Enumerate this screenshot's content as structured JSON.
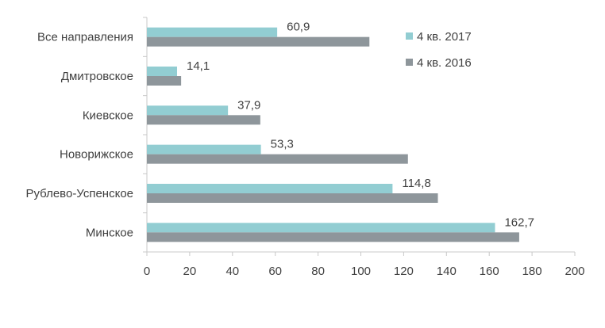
{
  "chart_data": {
    "type": "bar",
    "orientation": "horizontal",
    "categories": [
      "Все направления",
      "Дмитровское",
      "Киевское",
      "Новорижское",
      "Рублево-Успенское",
      "Минское"
    ],
    "series": [
      {
        "name": "4 кв. 2017",
        "color": "#92CDD2",
        "values": [
          60.9,
          14.1,
          37.9,
          53.3,
          114.8,
          162.7
        ],
        "data_labels": [
          "60,9",
          "14,1",
          "37,9",
          "53,3",
          "114,8",
          "162,7"
        ]
      },
      {
        "name": "4 кв. 2016",
        "color": "#8E969B",
        "values": [
          104,
          16,
          53,
          122,
          136,
          174
        ]
      }
    ],
    "xlim": [
      0,
      200
    ],
    "x_ticks": [
      0,
      20,
      40,
      60,
      80,
      100,
      120,
      140,
      160,
      180,
      200
    ],
    "x_tick_labels": [
      "0",
      "20",
      "40",
      "60",
      "80",
      "100",
      "120",
      "140",
      "160",
      "180",
      "200"
    ],
    "grid": false,
    "legend_position": "top-right",
    "title": "",
    "xlabel": "",
    "ylabel": ""
  }
}
